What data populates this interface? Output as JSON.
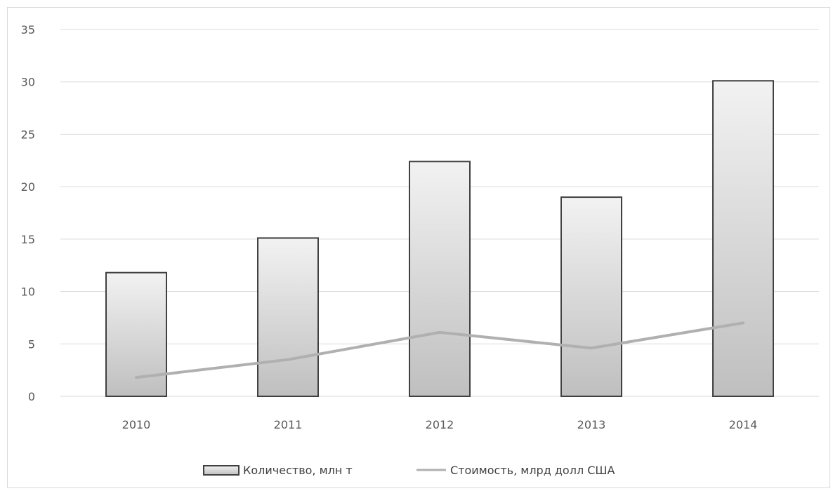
{
  "chart_data": {
    "type": "bar",
    "categories": [
      "2010",
      "2011",
      "2012",
      "2013",
      "2014"
    ],
    "series": [
      {
        "name": "Количество, млн т",
        "type": "bar",
        "values": [
          11.8,
          15.1,
          22.4,
          19.0,
          30.1
        ]
      },
      {
        "name": "Стоимость, млрд долл США",
        "type": "line",
        "values": [
          1.8,
          3.5,
          6.1,
          4.6,
          7.0
        ]
      }
    ],
    "ylim": [
      0,
      35
    ],
    "yticks": [
      "0",
      "5",
      "10",
      "15",
      "20",
      "25",
      "30",
      "35"
    ],
    "grid": true,
    "legend_position": "bottom",
    "colors": {
      "bar_top": "#f2f2f2",
      "bar_bottom": "#bfbfbf",
      "bar_border": "#404040",
      "line": "#b0b0b0",
      "grid": "#d9d9d9"
    }
  }
}
